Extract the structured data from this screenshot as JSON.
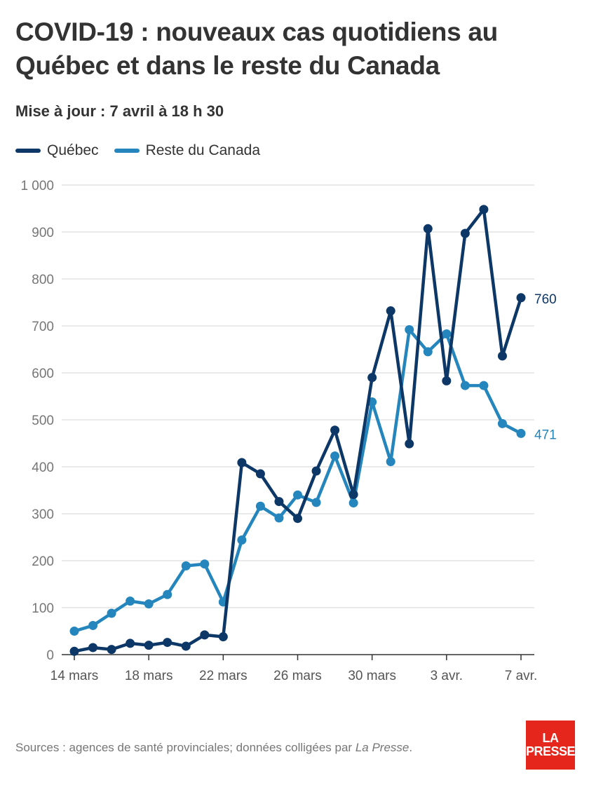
{
  "header": {
    "title": "COVID-19 : nouveaux cas quotidiens au Québec et dans le reste du Canada",
    "subtitle": "Mise à jour : 7 avril à 18 h 30"
  },
  "legend": {
    "quebec": "Québec",
    "canada": "Reste du Canada"
  },
  "footer": {
    "source_prefix": "Sources : agences de santé provinciales; données colligées par ",
    "source_publication": "La Presse",
    "source_suffix": "."
  },
  "logo": {
    "line1": "LA",
    "line2": "PRESSE",
    "color": "#e4261d"
  },
  "chart_data": {
    "type": "line",
    "title": "COVID-19 : nouveaux cas quotidiens au Québec et dans le reste du Canada",
    "xlabel": "",
    "ylabel": "",
    "ylim": [
      0,
      1000
    ],
    "yticks": [
      "0",
      "100",
      "200",
      "300",
      "400",
      "500",
      "600",
      "700",
      "800",
      "900",
      "1 000"
    ],
    "ytick_values": [
      0,
      100,
      200,
      300,
      400,
      500,
      600,
      700,
      800,
      900,
      1000
    ],
    "xtick_labels": [
      "14 mars",
      "18 mars",
      "22 mars",
      "26 mars",
      "30 mars",
      "3 avr.",
      "7 avr."
    ],
    "xtick_index": [
      0,
      4,
      8,
      12,
      16,
      20,
      24
    ],
    "grid": true,
    "legend_position": "top-left",
    "series": [
      {
        "name": "Québec",
        "color": "#0c3766",
        "values": [
          7,
          15,
          11,
          24,
          20,
          26,
          18,
          42,
          38,
          409,
          385,
          326,
          290,
          391,
          478,
          341,
          590,
          732,
          449,
          907,
          583,
          897,
          948,
          636,
          760
        ],
        "end_label": "760"
      },
      {
        "name": "Reste du Canada",
        "color": "#2586bd",
        "values": [
          50,
          62,
          88,
          114,
          108,
          128,
          189,
          193,
          112,
          244,
          316,
          291,
          340,
          324,
          423,
          323,
          538,
          411,
          692,
          645,
          683,
          573,
          573,
          492,
          471
        ],
        "end_label": "471"
      }
    ]
  }
}
